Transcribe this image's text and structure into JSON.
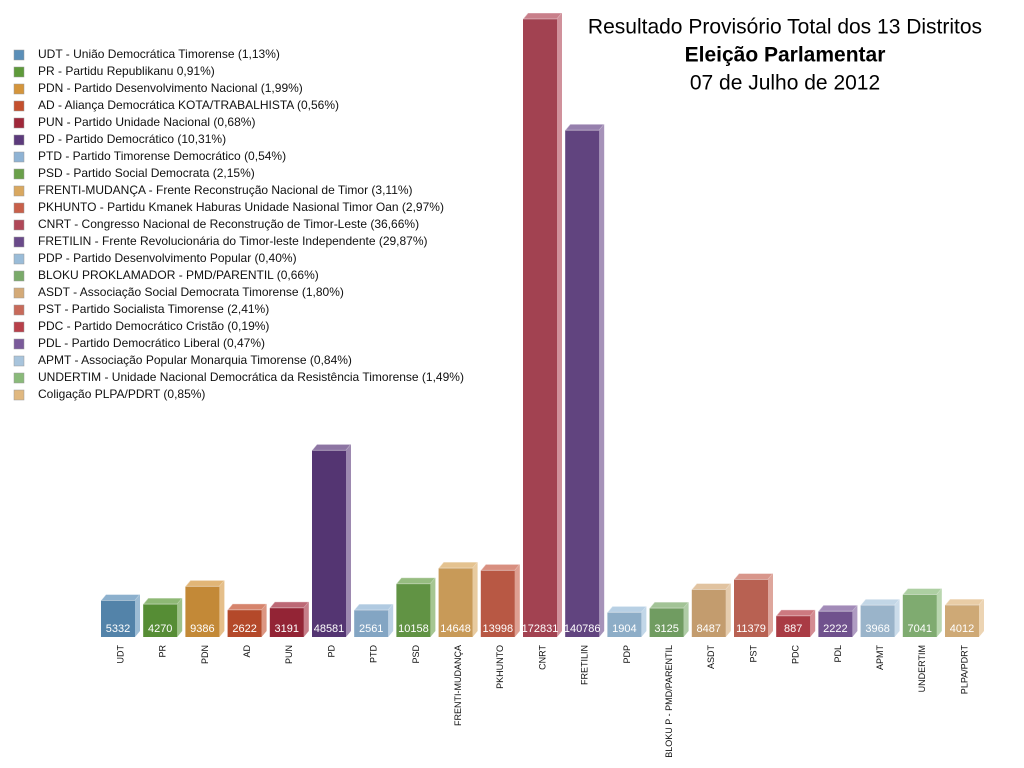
{
  "chart_data": {
    "type": "bar",
    "title": "Resultado Provisório Total dos 13 Distritos",
    "subtitle": "Eleição Parlamentar",
    "date": "07 de Julho de 2012",
    "categories": [
      "UDT",
      "PR",
      "PDN",
      "AD",
      "PUN",
      "PD",
      "PTD",
      "PSD",
      "FRENTI-MUDANÇA",
      "PKHUNTO",
      "CNRT",
      "FRETILIN",
      "PDP",
      "BLOKU P - PMD/PARENTIL",
      "ASDT",
      "PST",
      "PDC",
      "PDL",
      "APMT",
      "UNDERTIM",
      "PLPA/PDRT"
    ],
    "values": [
      5332,
      4270,
      9386,
      2622,
      3191,
      48581,
      2561,
      10158,
      14648,
      13998,
      172831,
      140786,
      1904,
      3125,
      8487,
      11379,
      887,
      2222,
      3968,
      7041,
      4012
    ],
    "colors": [
      "#5b8fb8",
      "#5e9a3a",
      "#d4953c",
      "#c4502e",
      "#a0283a",
      "#5c3a7c",
      "#8fb3d4",
      "#6aa04a",
      "#d9a860",
      "#c8604a",
      "#b04858",
      "#6a4a8a",
      "#9abcd8",
      "#7aaa6a",
      "#d4aa78",
      "#c86a5a",
      "#b8404a",
      "#7a5a9a",
      "#a8c4dc",
      "#8aba7a",
      "#e0b880"
    ],
    "legend": [
      "UDT - União Democrática Timorense (1,13%)",
      "PR - Partidu Republikanu 0,91%)",
      "PDN - Partido Desenvolvimento Nacional (1,99%)",
      "AD - Aliança Democrática KOTA/TRABALHISTA (0,56%)",
      "PUN - Partido Unidade Nacional (0,68%)",
      "PD - Partido Democrático (10,31%)",
      "PTD - Partido Timorense Democrático (0,54%)",
      "PSD - Partido Social Democrata (2,15%)",
      "FRENTI-MUDANÇA - Frente Reconstrução Nacional de Timor (3,11%)",
      "PKHUNTO - Partidu Kmanek Haburas Unidade Nasional Timor Oan (2,97%)",
      "CNRT - Congresso Nacional de Reconstrução de Timor-Leste (36,66%)",
      "FRETILIN -  Frente Revolucionária do Timor-leste Independente (29,87%)",
      "PDP - Partido Desenvolvimento Popular (0,40%)",
      "BLOKU PROKLAMADOR - PMD/PARENTIL (0,66%)",
      "ASDT - Associação Social Democrata Timorense (1,80%)",
      "PST - Partido Socialista Timorense (2,41%)",
      "PDC - Partido Democrático Cristão (0,19%)",
      "PDL - Partido Democrático Liberal (0,47%)",
      "APMT - Associação Popular Monarquia Timorense (0,84%)",
      "UNDERTIM - Unidade Nacional Democrática da Resistência Timorense (1,49%)",
      "Coligação PLPA/PDRT (0,85%)"
    ]
  }
}
